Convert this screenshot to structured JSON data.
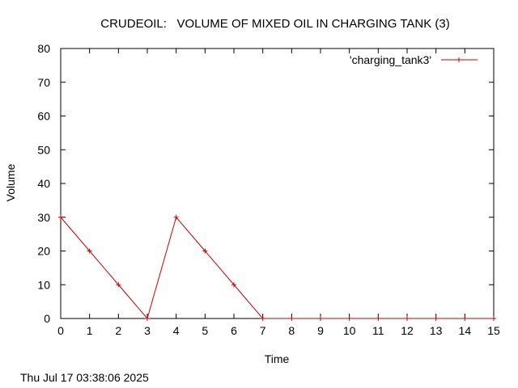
{
  "chart_data": {
    "type": "line",
    "title": "CRUDEOIL:   VOLUME OF MIXED OIL IN CHARGING TANK (3)",
    "xlabel": "Time",
    "ylabel": "Volume",
    "xlim": [
      0,
      15
    ],
    "ylim": [
      0,
      80
    ],
    "xticks": [
      "0",
      "1",
      "2",
      "3",
      "4",
      "5",
      "6",
      "7",
      "8",
      "9",
      "10",
      "11",
      "12",
      "13",
      "14",
      "15"
    ],
    "yticks": [
      "0",
      "10",
      "20",
      "30",
      "40",
      "50",
      "60",
      "70",
      "80"
    ],
    "grid": false,
    "legend_position": "top-right",
    "series": [
      {
        "name": "'charging_tank3'",
        "color": "#cc0000",
        "marker": "plus",
        "x": [
          0,
          1,
          2,
          3,
          4,
          5,
          6,
          7,
          8,
          9,
          10,
          11,
          12,
          13,
          14,
          15
        ],
        "y": [
          30,
          20,
          10,
          0,
          30,
          20,
          10,
          0,
          0,
          0,
          0,
          0,
          0,
          0,
          0,
          0
        ]
      }
    ]
  },
  "footer": {
    "timestamp": "Thu Jul 17 03:38:06 2025"
  }
}
